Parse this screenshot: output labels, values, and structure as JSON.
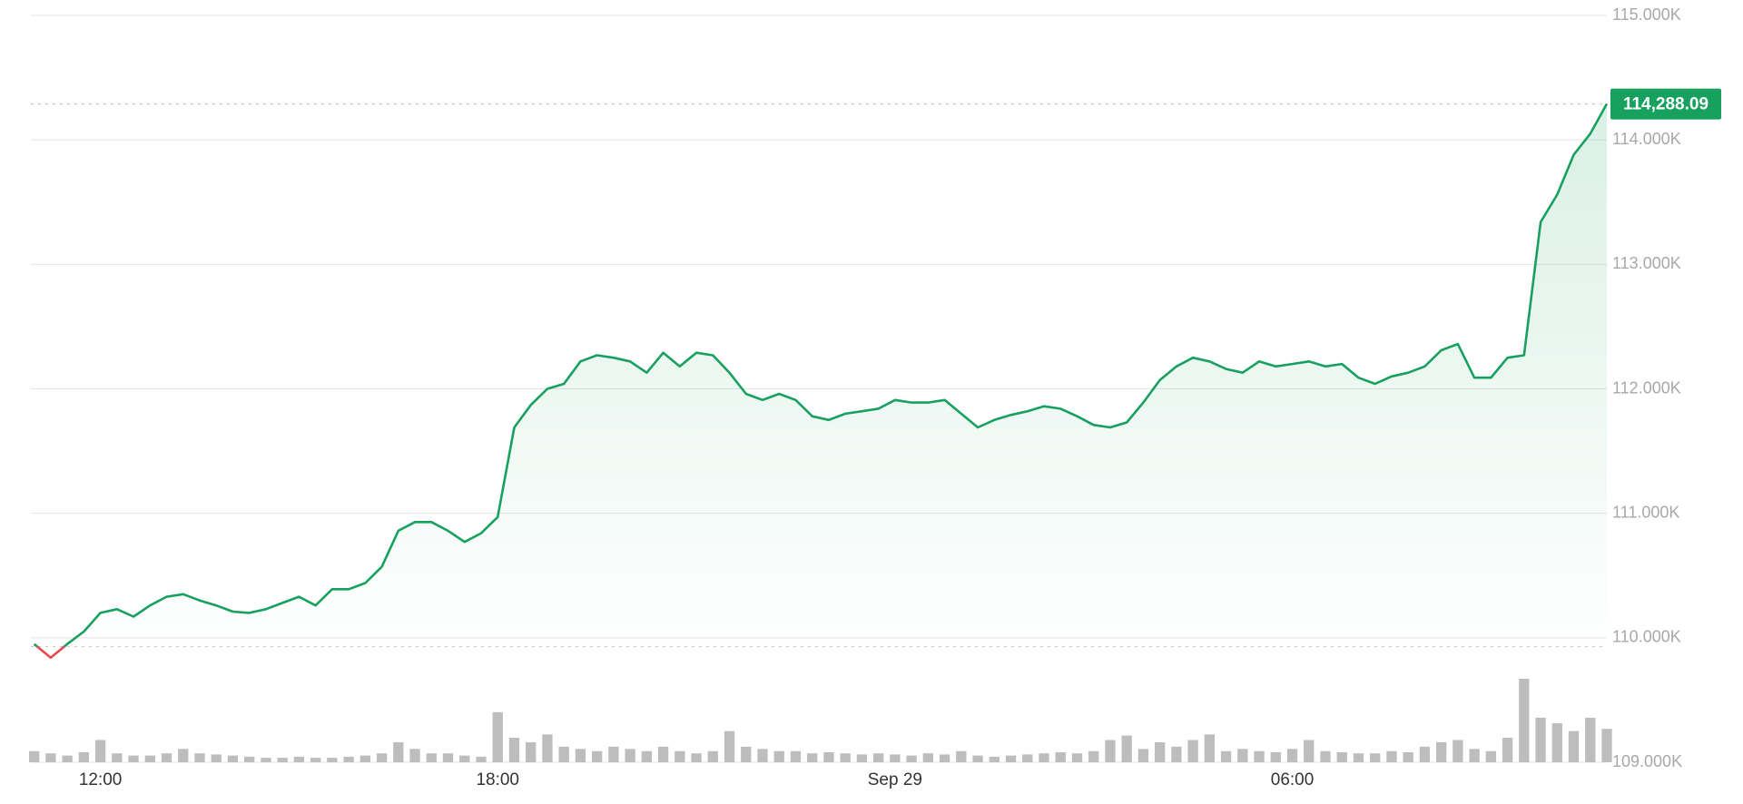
{
  "chart_data": {
    "type": "line",
    "color": "#17a05e",
    "down_color": "#e5484d",
    "volume_color": "#bdbdbd",
    "grid": true,
    "ylim": [
      109,
      115
    ],
    "yticks": [
      {
        "value": 109,
        "label": "109.000K"
      },
      {
        "value": 110,
        "label": "110.000K"
      },
      {
        "value": 111,
        "label": "111.000K"
      },
      {
        "value": 112,
        "label": "112.000K"
      },
      {
        "value": 113,
        "label": "113.000K"
      },
      {
        "value": 114,
        "label": "114.000K"
      },
      {
        "value": 115,
        "label": "115.000K"
      }
    ],
    "xlim": [
      -0.2,
      95
    ],
    "xticks": [
      {
        "value": 4,
        "label": "12:00"
      },
      {
        "value": 28,
        "label": "18:00"
      },
      {
        "value": 52,
        "label": "Sep 29"
      },
      {
        "value": 76,
        "label": "06:00"
      }
    ],
    "previous_close": 109.93,
    "last_price": {
      "value": 114.28809,
      "label": "114,288.09"
    },
    "values": [
      109.95,
      109.84,
      109.95,
      110.05,
      110.2,
      110.23,
      110.17,
      110.26,
      110.33,
      110.35,
      110.3,
      110.26,
      110.21,
      110.2,
      110.23,
      110.28,
      110.33,
      110.26,
      110.39,
      110.39,
      110.44,
      110.57,
      110.86,
      110.93,
      110.93,
      110.86,
      110.77,
      110.84,
      110.97,
      111.69,
      111.87,
      112.0,
      112.04,
      112.22,
      112.27,
      112.25,
      112.22,
      112.13,
      112.29,
      112.18,
      112.29,
      112.27,
      112.13,
      111.96,
      111.91,
      111.96,
      111.91,
      111.78,
      111.75,
      111.8,
      111.82,
      111.84,
      111.91,
      111.89,
      111.89,
      111.91,
      111.8,
      111.69,
      111.75,
      111.79,
      111.82,
      111.86,
      111.84,
      111.78,
      111.71,
      111.69,
      111.73,
      111.89,
      112.07,
      112.18,
      112.25,
      112.22,
      112.16,
      112.13,
      112.22,
      112.18,
      112.2,
      112.22,
      112.18,
      112.2,
      112.09,
      112.04,
      112.1,
      112.13,
      112.18,
      112.31,
      112.36,
      112.09,
      112.09,
      112.25,
      112.27,
      113.34,
      113.56,
      113.88,
      114.05,
      114.29
    ],
    "volume": [
      10,
      8,
      6,
      9,
      20,
      8,
      6,
      6,
      8,
      12,
      8,
      7,
      6,
      5,
      4,
      4,
      5,
      4,
      4,
      5,
      6,
      8,
      18,
      12,
      8,
      8,
      6,
      5,
      45,
      22,
      18,
      25,
      14,
      12,
      10,
      14,
      12,
      10,
      14,
      10,
      8,
      10,
      28,
      14,
      12,
      10,
      10,
      8,
      9,
      8,
      7,
      8,
      7,
      6,
      8,
      7,
      10,
      6,
      5,
      6,
      7,
      8,
      9,
      8,
      10,
      20,
      24,
      12,
      18,
      14,
      20,
      25,
      10,
      12,
      10,
      9,
      12,
      20,
      10,
      9,
      8,
      8,
      10,
      9,
      14,
      18,
      20,
      12,
      10,
      22,
      75,
      40,
      35,
      28,
      40,
      30
    ]
  }
}
